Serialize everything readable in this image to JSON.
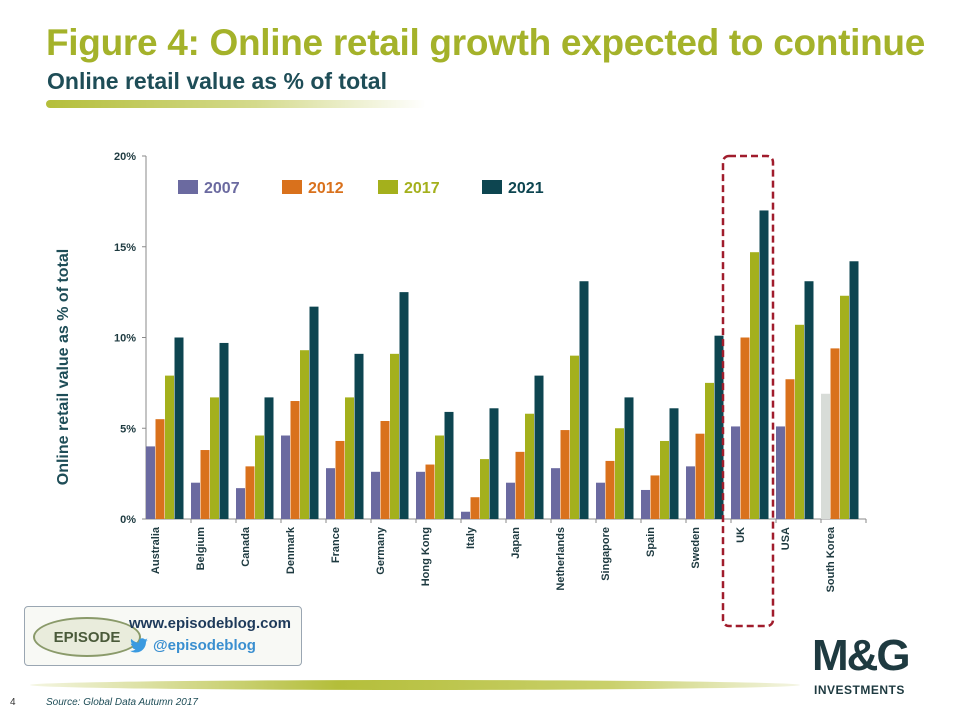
{
  "header": {
    "title": "Figure 4: Online retail growth expected to continue",
    "subtitle": "Online retail value as % of  total"
  },
  "footer": {
    "page_number": "4",
    "source": "Source: Global Data Autumn 2017",
    "episode_logo_text": "EPISODE",
    "episode_url": "www.episodeblog.com",
    "episode_handle": "@episodeblog",
    "brand_logo": "M&G",
    "brand_sub": "INVESTMENTS"
  },
  "colors": {
    "title": "#a4b22a",
    "subtitle": "#1e4d57",
    "highlight_box": "#a01c2c"
  },
  "chart_data": {
    "type": "bar",
    "title": "",
    "xlabel": "",
    "ylabel": "Online retail value as % of  total",
    "ylim": [
      0,
      20
    ],
    "yticks": [
      "0%",
      "5%",
      "10%",
      "15%",
      "20%"
    ],
    "legend_position": "top-left",
    "grid": false,
    "categories": [
      "Australia",
      "Belgium",
      "Canada",
      "Denmark",
      "France",
      "Germany",
      "Hong Kong",
      "Italy",
      "Japan",
      "Netherlands",
      "Singapore",
      "Spain",
      "Sweden",
      "UK",
      "USA",
      "South Korea"
    ],
    "series": [
      {
        "name": "2007",
        "color": "#6b6aa0",
        "values": [
          4.0,
          2.0,
          1.7,
          4.6,
          2.8,
          2.6,
          2.6,
          0.4,
          2.0,
          2.8,
          2.0,
          1.6,
          2.9,
          5.1,
          5.1,
          6.9
        ]
      },
      {
        "name": "2012",
        "color": "#d9711c",
        "values": [
          5.5,
          3.8,
          2.9,
          6.5,
          4.3,
          5.4,
          3.0,
          1.2,
          3.7,
          4.9,
          3.2,
          2.4,
          4.7,
          10.0,
          7.7,
          9.4
        ]
      },
      {
        "name": "2017",
        "color": "#a4b01c",
        "values": [
          7.9,
          6.7,
          4.6,
          9.3,
          6.7,
          9.1,
          4.6,
          3.3,
          5.8,
          9.0,
          5.0,
          4.3,
          7.5,
          14.7,
          10.7,
          12.3
        ]
      },
      {
        "name": "2021",
        "color": "#0d4550",
        "values": [
          10.0,
          9.7,
          6.7,
          11.7,
          9.1,
          12.5,
          5.9,
          6.1,
          7.9,
          13.1,
          6.7,
          6.1,
          10.1,
          17.0,
          13.1,
          14.2
        ]
      }
    ],
    "highlight_category": "UK",
    "highlight_style": "dashed box"
  }
}
